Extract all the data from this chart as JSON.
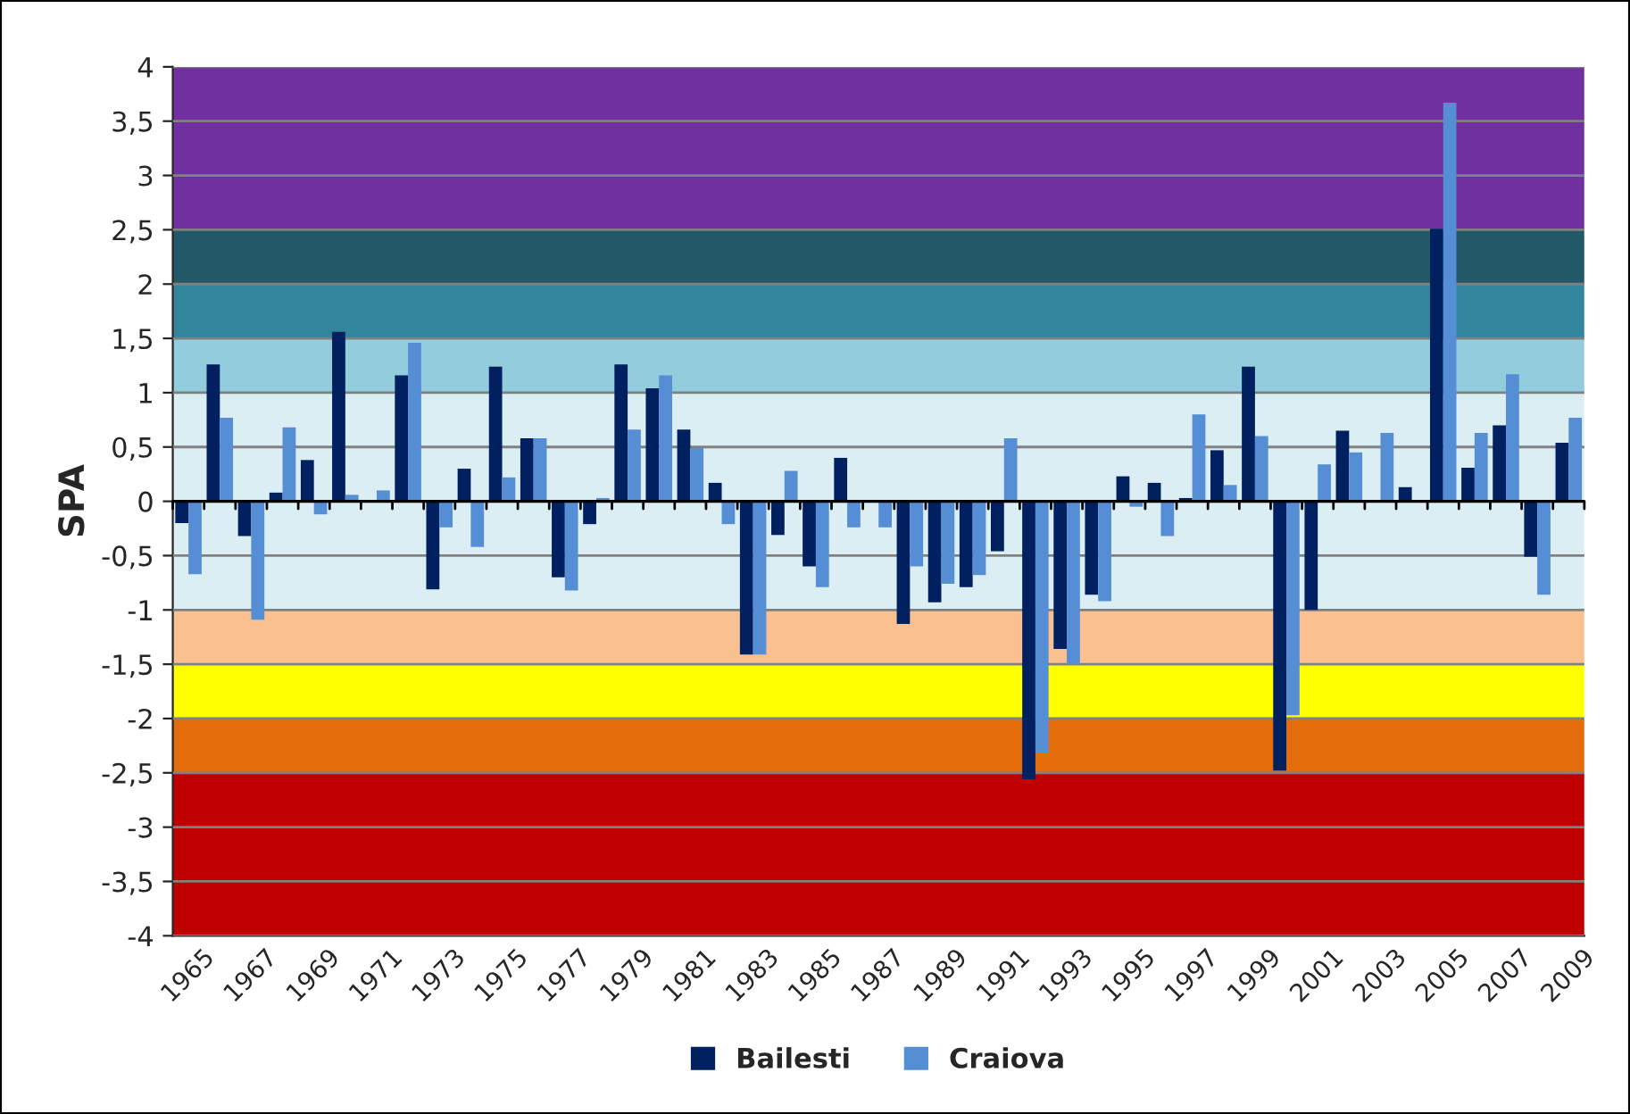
{
  "chart_data": {
    "type": "bar",
    "ylabel": "SPA",
    "categories": [
      "1965",
      null,
      "1967",
      null,
      "1969",
      null,
      "1971",
      null,
      "1973",
      null,
      "1975",
      null,
      "1977",
      null,
      "1979",
      null,
      "1981",
      null,
      "1983",
      null,
      "1985",
      null,
      "1987",
      null,
      "1989",
      null,
      "1991",
      null,
      "1993",
      null,
      "1995",
      null,
      "1997",
      null,
      "1999",
      null,
      "2001",
      null,
      "2003",
      null,
      "2005",
      null,
      "2007",
      null,
      "2009"
    ],
    "series": [
      {
        "name": "Bailesti",
        "color": "#002060",
        "values": [
          -0.2,
          1.26,
          -0.32,
          0.08,
          0.38,
          1.56,
          0,
          1.16,
          -0.81,
          0.3,
          1.24,
          0.58,
          -0.7,
          -0.21,
          1.26,
          1.04,
          0.66,
          0.17,
          -1.41,
          -0.31,
          -0.6,
          0.4,
          null,
          -1.13,
          -0.93,
          -0.79,
          -0.46,
          -2.56,
          -1.36,
          -0.86,
          0.23,
          0.17,
          0.03,
          0.47,
          1.24,
          -2.48,
          -1.0,
          0.65,
          0,
          0.13,
          2.51,
          0.31,
          0.7,
          -0.51,
          0.54
        ]
      },
      {
        "name": "Craiova",
        "color": "#558ed5",
        "values": [
          -0.67,
          0.77,
          -1.09,
          0.68,
          -0.12,
          0.06,
          0.1,
          1.46,
          -0.24,
          -0.42,
          0.22,
          0.58,
          -0.82,
          0.03,
          0.66,
          1.16,
          0.49,
          -0.21,
          -1.41,
          0.28,
          -0.79,
          -0.24,
          -0.24,
          -0.6,
          -0.76,
          -0.68,
          0.58,
          -2.32,
          -1.5,
          -0.92,
          -0.05,
          -0.32,
          0.8,
          0.15,
          0.6,
          -1.97,
          0.34,
          0.45,
          0.63,
          0,
          3.67,
          0.63,
          1.17,
          -0.86,
          0.77
        ]
      }
    ],
    "ylim": [
      -4,
      4
    ],
    "yticks": [
      -4,
      {
        "value": -3.5,
        "label": "-3,5"
      },
      -3,
      {
        "value": -2.5,
        "label": "-2,5"
      },
      -2,
      {
        "value": -1.5,
        "label": "-1,5"
      },
      -1,
      {
        "value": -0.5,
        "label": "-0,5"
      },
      0,
      {
        "value": 0.5,
        "label": "0,5"
      },
      1,
      {
        "value": 1.5,
        "label": "1,5"
      },
      2,
      {
        "value": 2.5,
        "label": "2,5"
      },
      3,
      {
        "value": 3.5,
        "label": "3,5"
      },
      4
    ],
    "bands": [
      {
        "axis": "y",
        "from": -4,
        "to": -2.5,
        "color": "#c00000"
      },
      {
        "axis": "y",
        "from": -2.5,
        "to": -2,
        "color": "#e46c0a"
      },
      {
        "axis": "y",
        "from": -2,
        "to": -1.5,
        "color": "#ffff00"
      },
      {
        "axis": "y",
        "from": -1.5,
        "to": -1,
        "color": "#fac090"
      },
      {
        "axis": "y",
        "from": -1,
        "to": 1,
        "color": "#dbeef4"
      },
      {
        "axis": "y",
        "from": 1,
        "to": 1.5,
        "color": "#93cddd"
      },
      {
        "axis": "y",
        "from": 1.5,
        "to": 2,
        "color": "#31859c"
      },
      {
        "axis": "y",
        "from": 2,
        "to": 2.5,
        "color": "#215968"
      },
      {
        "axis": "y",
        "from": 2.5,
        "to": 4,
        "color": "#7030a0"
      }
    ],
    "grid": "y",
    "legend": "bottom"
  }
}
